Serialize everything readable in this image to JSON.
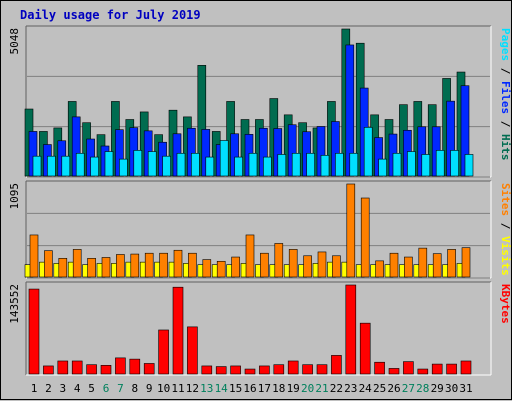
{
  "title": "Daily usage for July 2019",
  "chart_data": [
    {
      "type": "bar",
      "panel": "hits",
      "categories": [
        "1",
        "2",
        "3",
        "4",
        "5",
        "6",
        "7",
        "8",
        "9",
        "10",
        "11",
        "12",
        "13",
        "14",
        "15",
        "16",
        "17",
        "18",
        "19",
        "20",
        "21",
        "22",
        "23",
        "24",
        "25",
        "26",
        "27",
        "28",
        "29",
        "30",
        "31"
      ],
      "weekend_days": [
        "6",
        "7",
        "13",
        "14",
        "20",
        "21",
        "27",
        "28"
      ],
      "ymax_label": "5048",
      "ylim": [
        0,
        5048
      ],
      "grid": true,
      "legend_right": [
        "Pages",
        "Files",
        "Hits"
      ],
      "series": [
        {
          "name": "Hits",
          "color": "#006c50",
          "values": [
            2300,
            1530,
            1650,
            2560,
            1830,
            1420,
            2560,
            1940,
            2200,
            1420,
            2260,
            2030,
            3800,
            1530,
            2560,
            1940,
            1940,
            2660,
            2100,
            1830,
            1650,
            2560,
            5048,
            4560,
            2100,
            1940,
            2450,
            2560,
            2450,
            3350,
            3570
          ]
        },
        {
          "name": "Files",
          "color": "#0028ff",
          "values": [
            1530,
            1080,
            1210,
            2030,
            1270,
            1030,
            1590,
            1660,
            1550,
            1160,
            1450,
            1640,
            1600,
            1080,
            1450,
            1430,
            1640,
            1630,
            1760,
            1520,
            1700,
            1870,
            4500,
            3020,
            1320,
            1440,
            1570,
            1690,
            1690,
            2570,
            3100
          ]
        },
        {
          "name": "Pages",
          "color": "#00e0ff",
          "values": [
            680,
            680,
            680,
            780,
            650,
            840,
            580,
            880,
            840,
            680,
            780,
            780,
            650,
            1220,
            650,
            780,
            650,
            740,
            780,
            780,
            710,
            780,
            780,
            1670,
            580,
            780,
            840,
            740,
            880,
            880,
            740
          ]
        }
      ]
    },
    {
      "type": "bar",
      "panel": "visits",
      "categories": [
        "1",
        "2",
        "3",
        "4",
        "5",
        "6",
        "7",
        "8",
        "9",
        "10",
        "11",
        "12",
        "13",
        "14",
        "15",
        "16",
        "17",
        "18",
        "19",
        "20",
        "21",
        "22",
        "23",
        "24",
        "25",
        "26",
        "27",
        "28",
        "29",
        "30",
        "31"
      ],
      "ymax_label": "1095",
      "ylim": [
        0,
        1095
      ],
      "grid": true,
      "legend_right": [
        "Sites",
        "Visits"
      ],
      "series": [
        {
          "name": "Visits",
          "color": "#ffff00",
          "values": [
            145,
            175,
            160,
            175,
            145,
            160,
            160,
            175,
            175,
            175,
            175,
            160,
            145,
            145,
            145,
            160,
            145,
            145,
            145,
            145,
            160,
            175,
            175,
            145,
            145,
            145,
            145,
            145,
            145,
            145,
            160
          ]
        },
        {
          "name": "Sites",
          "color": "#ff8000",
          "values": [
            495,
            310,
            220,
            325,
            220,
            230,
            265,
            270,
            280,
            280,
            315,
            280,
            205,
            185,
            235,
            495,
            280,
            395,
            325,
            250,
            295,
            250,
            1095,
            930,
            190,
            280,
            235,
            340,
            275,
            325,
            345
          ]
        }
      ]
    },
    {
      "type": "bar",
      "panel": "kbytes",
      "categories": [
        "1",
        "2",
        "3",
        "4",
        "5",
        "6",
        "7",
        "8",
        "9",
        "10",
        "11",
        "12",
        "13",
        "14",
        "15",
        "16",
        "17",
        "18",
        "19",
        "20",
        "21",
        "22",
        "23",
        "24",
        "25",
        "26",
        "27",
        "28",
        "29",
        "30",
        "31"
      ],
      "ymax_label": "143552",
      "ylim": [
        0,
        143552
      ],
      "grid": false,
      "legend_right": [
        "KBytes"
      ],
      "series": [
        {
          "name": "KBytes",
          "color": "#ff0000",
          "values": [
            137000,
            13000,
            21000,
            21000,
            15000,
            14000,
            26000,
            24000,
            17000,
            71000,
            140000,
            76000,
            13000,
            12000,
            13000,
            8000,
            13000,
            15000,
            21000,
            15000,
            15000,
            30000,
            143552,
            82000,
            19000,
            9000,
            20000,
            8000,
            16000,
            16000,
            21000
          ]
        }
      ]
    }
  ]
}
